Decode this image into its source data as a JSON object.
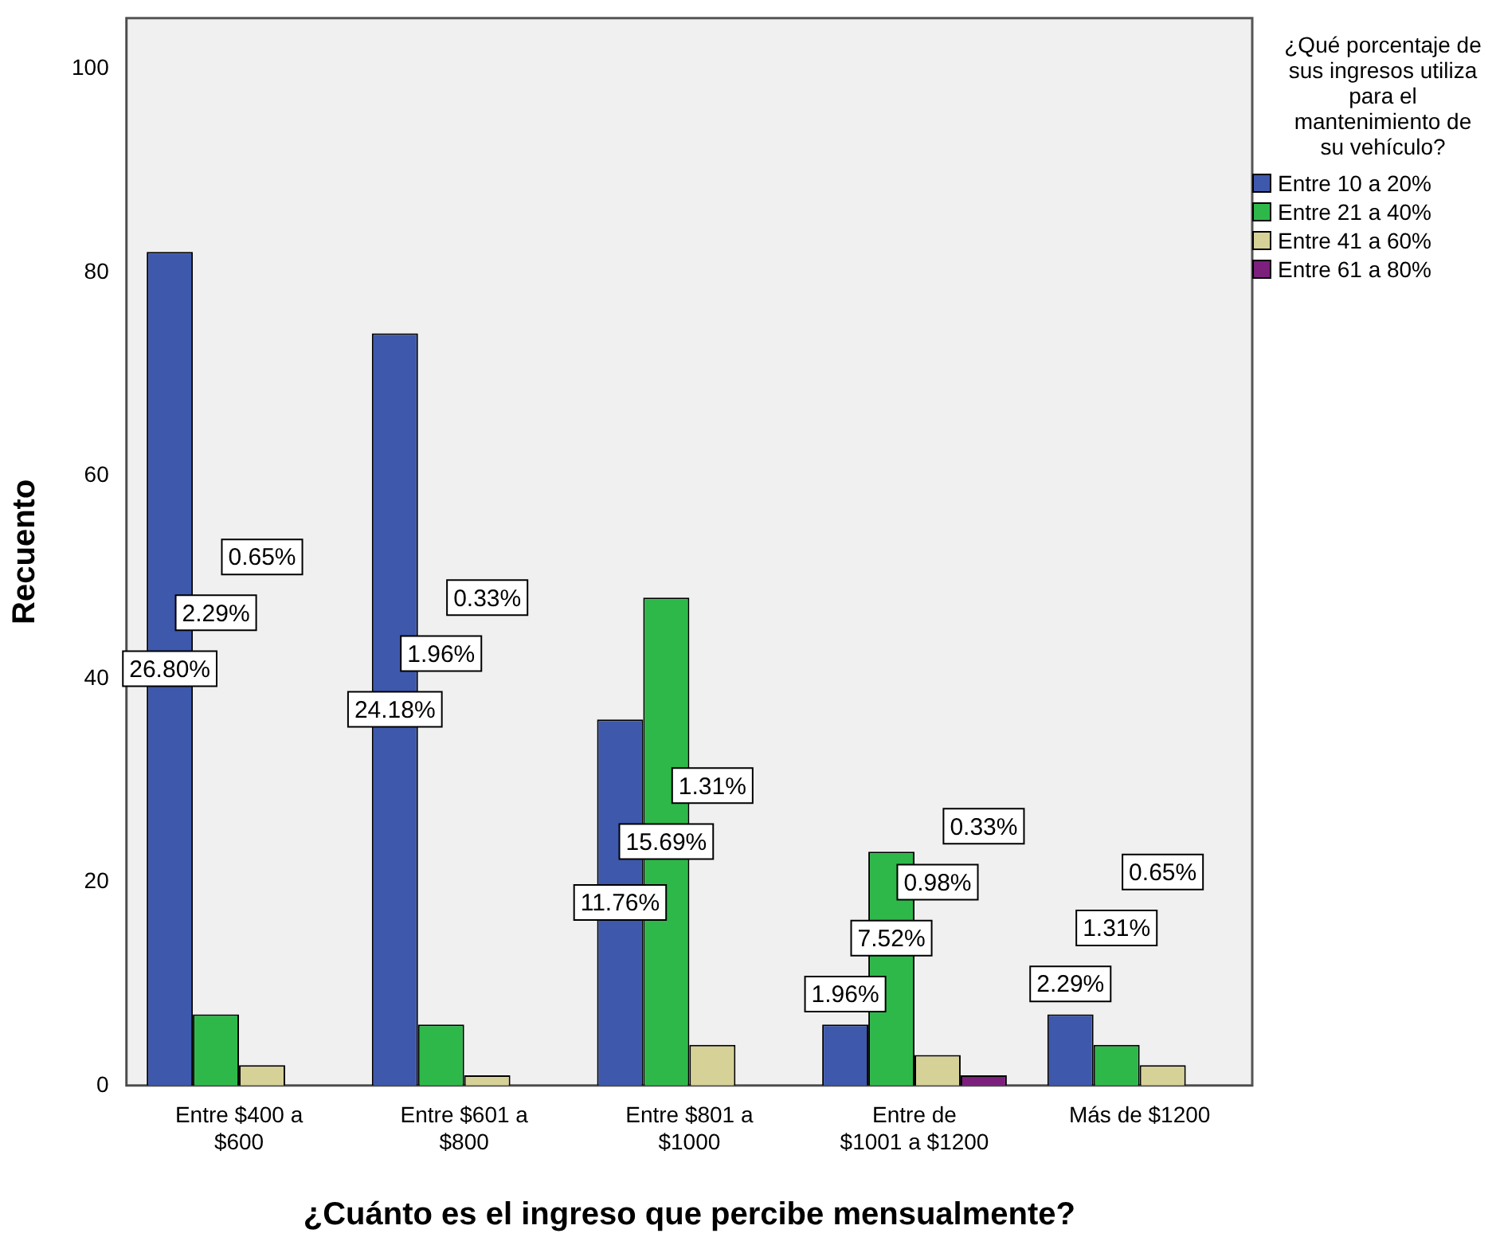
{
  "chart_data": {
    "type": "bar",
    "xlabel": "¿Cuánto es el ingreso que percibe mensualmente?",
    "ylabel": "Recuento",
    "legend_title": "¿Qué porcentaje de sus ingresos utiliza para el mantenimiento de su vehículo?",
    "legend": "right",
    "grid": false,
    "categories": [
      "Entre $400 a $600",
      "Entre $601 a $800",
      "Entre $801 a $1000",
      "Entre de $1001 a $1200",
      "Más de $1200"
    ],
    "ylim": [
      0,
      105
    ],
    "yticks": [
      0,
      20,
      40,
      60,
      80,
      100
    ],
    "series": [
      {
        "name": "Entre 10 a 20%",
        "color": "#3e58ac",
        "values": [
          82,
          74,
          36,
          6,
          7
        ]
      },
      {
        "name": "Entre 21 a 40%",
        "color": "#2eb84a",
        "values": [
          7,
          6,
          48,
          23,
          4
        ]
      },
      {
        "name": "Entre 41 a 60%",
        "color": "#d6d196",
        "values": [
          2,
          1,
          4,
          3,
          2
        ]
      },
      {
        "name": "Entre 61 a 80%",
        "color": "#7c1f7d",
        "values": [
          null,
          null,
          null,
          1,
          null
        ]
      }
    ],
    "annotations": [
      "26.80%",
      "2.29%",
      "0.65%",
      "24.18%",
      "1.96%",
      "0.33%",
      "11.76%",
      "15.69%",
      "1.31%",
      "1.96%",
      "7.52%",
      "0.98%",
      "0.33%",
      "2.29%",
      "1.31%",
      "0.65%"
    ]
  }
}
